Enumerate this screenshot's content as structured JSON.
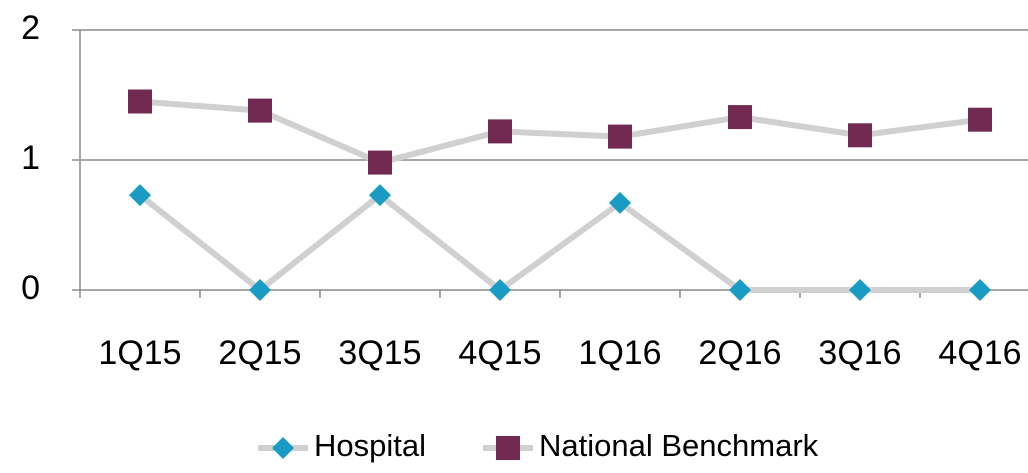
{
  "chart_data": {
    "type": "line",
    "categories": [
      "1Q15",
      "2Q15",
      "3Q15",
      "4Q15",
      "1Q16",
      "2Q16",
      "3Q16",
      "4Q16"
    ],
    "series": [
      {
        "name": "Hospital",
        "color": "#1a9bc4",
        "marker": "diamond",
        "values": [
          0.73,
          0,
          0.73,
          0,
          0.67,
          0,
          0,
          0
        ]
      },
      {
        "name": "National Benchmark",
        "color": "#722a52",
        "marker": "square",
        "values": [
          1.45,
          1.38,
          0.98,
          1.22,
          1.18,
          1.33,
          1.19,
          1.31
        ]
      }
    ],
    "line_color": "#d0d0d0",
    "ylim": [
      0,
      2
    ],
    "yticks": [
      0,
      1,
      2
    ],
    "grid": true,
    "legend": "bottom"
  }
}
